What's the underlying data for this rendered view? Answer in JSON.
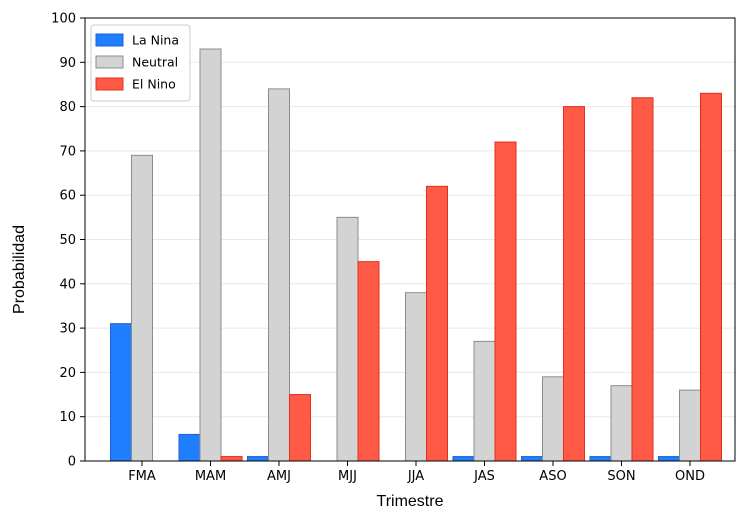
{
  "chart_data": {
    "type": "bar",
    "xlabel": "Trimestre",
    "ylabel": "Probabilidad",
    "ylim": [
      0,
      100
    ],
    "yticks": [
      0,
      10,
      20,
      30,
      40,
      50,
      60,
      70,
      80,
      90,
      100
    ],
    "grid": "horizontal",
    "legend_position": "top-left",
    "categories": [
      "FMA",
      "MAM",
      "AMJ",
      "MJJ",
      "JJA",
      "JAS",
      "ASO",
      "SON",
      "OND"
    ],
    "series": [
      {
        "name": "La Nina",
        "color": "#1f7fff",
        "edge": "#1f5fd0",
        "values": [
          31,
          6,
          1,
          0,
          0,
          1,
          1,
          1,
          1
        ]
      },
      {
        "name": "Neutral",
        "color": "#d3d3d3",
        "edge": "#8c8c8c",
        "values": [
          69,
          93,
          84,
          55,
          38,
          27,
          19,
          17,
          16
        ]
      },
      {
        "name": "El Nino",
        "color": "#ff5a45",
        "edge": "#e0301e",
        "values": [
          0,
          1,
          15,
          45,
          62,
          72,
          80,
          82,
          83
        ]
      }
    ]
  }
}
